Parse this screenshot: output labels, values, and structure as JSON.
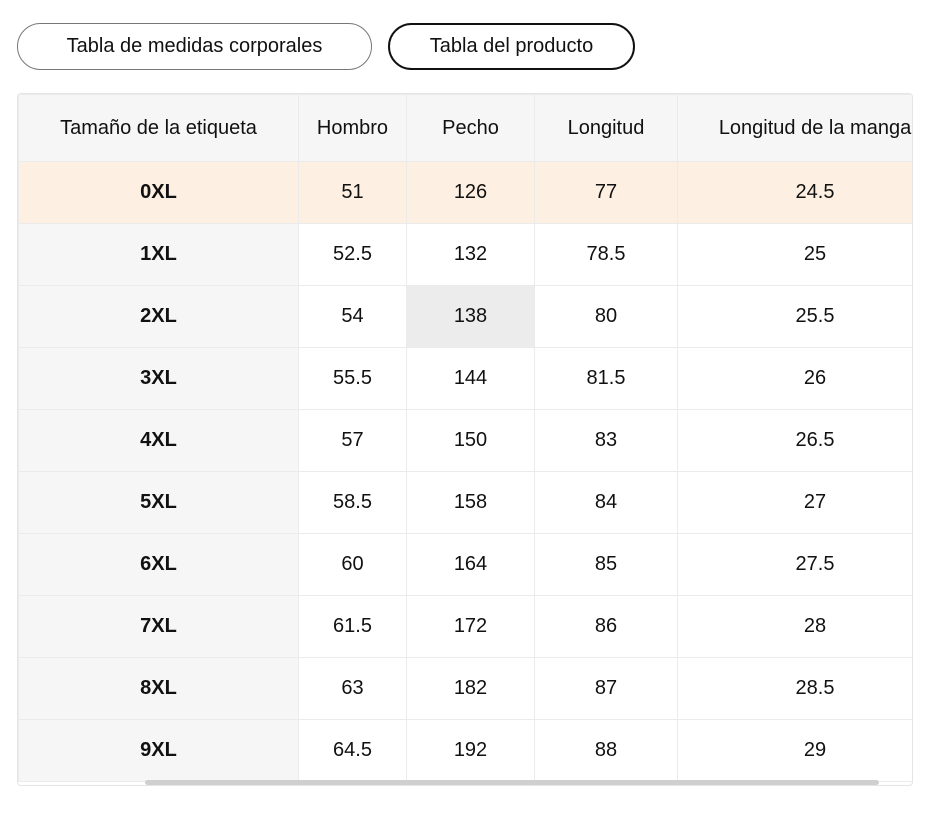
{
  "tabs": [
    "Tabla de medidas corporales",
    "Tabla del producto"
  ],
  "selected_tab": 1,
  "table": {
    "header": [
      "Tamaño de la etiqueta",
      "Hombro",
      "Pecho",
      "Longitud",
      "Longitud de la manga"
    ],
    "rows": [
      [
        "0XL",
        "51",
        "126",
        "77",
        "24.5"
      ],
      [
        "1XL",
        "52.5",
        "132",
        "78.5",
        "25"
      ],
      [
        "2XL",
        "54",
        "138",
        "80",
        "25.5"
      ],
      [
        "3XL",
        "55.5",
        "144",
        "81.5",
        "26"
      ],
      [
        "4XL",
        "57",
        "150",
        "83",
        "26.5"
      ],
      [
        "5XL",
        "58.5",
        "158",
        "84",
        "27"
      ],
      [
        "6XL",
        "60",
        "164",
        "85",
        "27.5"
      ],
      [
        "7XL",
        "61.5",
        "172",
        "86",
        "28"
      ],
      [
        "8XL",
        "63",
        "182",
        "87",
        "28.5"
      ],
      [
        "9XL",
        "64.5",
        "192",
        "88",
        "29"
      ]
    ]
  }
}
